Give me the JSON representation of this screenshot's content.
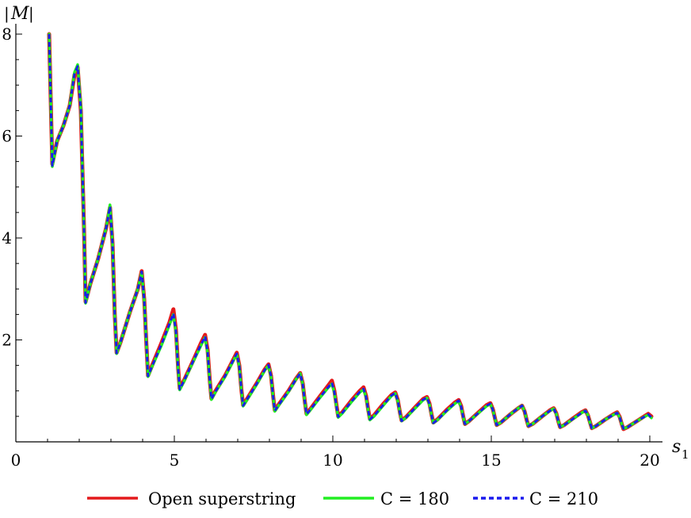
{
  "chart_data": {
    "type": "line",
    "title": "",
    "xlabel": "s1",
    "xlabel_main": "s",
    "xlabel_sub": "1",
    "ylabel": "|M|",
    "ylabel_left": "|",
    "ylabel_mid": "M",
    "ylabel_right": "|",
    "xlim": [
      0,
      20
    ],
    "ylim": [
      0,
      8
    ],
    "xticks": [
      0,
      5,
      10,
      15,
      20
    ],
    "yticks": [
      2,
      4,
      6,
      8
    ],
    "grid": false,
    "legend_placement": "bottom",
    "series": [
      {
        "name": "Open superstring",
        "color": "#e41a1c",
        "style": "solid",
        "x": [
          1.05,
          1.15,
          1.3,
          1.5,
          1.7,
          1.85,
          1.95,
          2.05,
          2.15,
          2.2,
          2.35,
          2.6,
          2.85,
          2.97,
          3.05,
          3.12,
          3.18,
          3.3,
          3.6,
          3.85,
          3.97,
          4.05,
          4.12,
          4.17,
          4.3,
          4.6,
          4.85,
          4.97,
          5.05,
          5.12,
          5.17,
          5.3,
          5.6,
          5.85,
          5.97,
          6.05,
          6.12,
          6.17,
          6.3,
          6.6,
          6.85,
          6.97,
          7.05,
          7.12,
          7.17,
          7.3,
          7.6,
          7.85,
          7.97,
          8.05,
          8.12,
          8.17,
          8.3,
          8.6,
          8.85,
          8.97,
          9.05,
          9.12,
          9.17,
          9.3,
          9.6,
          9.85,
          9.97,
          10.05,
          10.12,
          10.17,
          10.3,
          10.6,
          10.85,
          10.97,
          11.05,
          11.12,
          11.17,
          11.3,
          11.6,
          11.85,
          11.97,
          12.05,
          12.12,
          12.17,
          12.3,
          12.6,
          12.85,
          12.97,
          13.05,
          13.12,
          13.17,
          13.3,
          13.6,
          13.85,
          13.97,
          14.05,
          14.12,
          14.17,
          14.3,
          14.6,
          14.85,
          14.97,
          15.05,
          15.12,
          15.17,
          15.3,
          15.6,
          15.85,
          15.97,
          16.05,
          16.12,
          16.17,
          16.3,
          16.6,
          16.85,
          16.97,
          17.05,
          17.12,
          17.17,
          17.3,
          17.6,
          17.85,
          17.97,
          18.05,
          18.12,
          18.17,
          18.3,
          18.6,
          18.85,
          18.97,
          19.05,
          19.12,
          19.17,
          19.3,
          19.6,
          19.85,
          19.95,
          20.05
        ],
        "y": [
          8.0,
          5.45,
          5.9,
          6.2,
          6.6,
          7.2,
          7.35,
          6.5,
          4.2,
          2.75,
          3.1,
          3.6,
          4.2,
          4.6,
          3.9,
          2.5,
          1.75,
          1.95,
          2.55,
          3.0,
          3.35,
          2.8,
          1.9,
          1.3,
          1.5,
          1.95,
          2.35,
          2.6,
          2.2,
          1.45,
          1.05,
          1.2,
          1.6,
          1.95,
          2.1,
          1.8,
          1.2,
          0.85,
          1.0,
          1.3,
          1.6,
          1.75,
          1.5,
          1.0,
          0.72,
          0.85,
          1.15,
          1.42,
          1.52,
          1.3,
          0.88,
          0.62,
          0.74,
          1.0,
          1.25,
          1.35,
          1.15,
          0.78,
          0.55,
          0.65,
          0.9,
          1.1,
          1.2,
          1.0,
          0.7,
          0.5,
          0.58,
          0.82,
          1.0,
          1.07,
          0.9,
          0.62,
          0.45,
          0.52,
          0.75,
          0.92,
          0.97,
          0.82,
          0.57,
          0.42,
          0.48,
          0.68,
          0.84,
          0.88,
          0.75,
          0.52,
          0.38,
          0.44,
          0.63,
          0.77,
          0.82,
          0.7,
          0.48,
          0.35,
          0.41,
          0.58,
          0.72,
          0.76,
          0.64,
          0.45,
          0.33,
          0.38,
          0.54,
          0.66,
          0.71,
          0.6,
          0.42,
          0.31,
          0.35,
          0.5,
          0.62,
          0.66,
          0.56,
          0.39,
          0.29,
          0.33,
          0.47,
          0.58,
          0.62,
          0.52,
          0.37,
          0.27,
          0.31,
          0.44,
          0.54,
          0.58,
          0.49,
          0.34,
          0.25,
          0.29,
          0.41,
          0.51,
          0.55,
          0.5
        ]
      },
      {
        "name": "C = 180",
        "color": "#22ee22",
        "style": "solid",
        "x": [
          1.05,
          1.15,
          1.3,
          1.5,
          1.7,
          1.85,
          1.95,
          2.05,
          2.15,
          2.2,
          2.35,
          2.6,
          2.85,
          2.97,
          3.05,
          3.12,
          3.18,
          3.3,
          3.6,
          3.85,
          3.97,
          4.05,
          4.12,
          4.17,
          4.3,
          4.6,
          4.85,
          4.97,
          5.05,
          5.12,
          5.17,
          5.3,
          5.6,
          5.85,
          5.97,
          6.05,
          6.12,
          6.17,
          6.3,
          6.6,
          6.85,
          6.97,
          7.05,
          7.12,
          7.17,
          7.3,
          7.6,
          7.85,
          7.97,
          8.05,
          8.12,
          8.17,
          8.3,
          8.6,
          8.85,
          8.97,
          9.05,
          9.12,
          9.17,
          9.3,
          9.6,
          9.85,
          9.97,
          10.05,
          10.12,
          10.17,
          10.3,
          10.6,
          10.85,
          10.97,
          11.05,
          11.12,
          11.17,
          11.3,
          11.6,
          11.85,
          11.97,
          12.05,
          12.12,
          12.17,
          12.3,
          12.6,
          12.85,
          12.97,
          13.05,
          13.12,
          13.17,
          13.3,
          13.6,
          13.85,
          13.97,
          14.05,
          14.12,
          14.17,
          14.3,
          14.6,
          14.85,
          14.97,
          15.05,
          15.12,
          15.17,
          15.3,
          15.6,
          15.85,
          15.97,
          16.05,
          16.12,
          16.17,
          16.3,
          16.6,
          16.85,
          16.97,
          17.05,
          17.12,
          17.17,
          17.3,
          17.6,
          17.85,
          17.97,
          18.05,
          18.12,
          18.17,
          18.3,
          18.6,
          18.85,
          18.97,
          19.05,
          19.12,
          19.17,
          19.3,
          19.6,
          19.85,
          19.95,
          20.05
        ],
        "y": [
          8.0,
          5.4,
          5.9,
          6.2,
          6.6,
          7.25,
          7.4,
          6.55,
          4.2,
          2.72,
          3.1,
          3.6,
          4.2,
          4.65,
          3.9,
          2.5,
          1.73,
          1.95,
          2.55,
          3.0,
          3.33,
          2.78,
          1.9,
          1.28,
          1.48,
          1.9,
          2.3,
          2.5,
          2.15,
          1.42,
          1.02,
          1.18,
          1.58,
          1.9,
          2.05,
          1.75,
          1.18,
          0.83,
          0.98,
          1.28,
          1.58,
          1.72,
          1.48,
          0.98,
          0.7,
          0.83,
          1.13,
          1.4,
          1.5,
          1.28,
          0.86,
          0.6,
          0.72,
          0.98,
          1.24,
          1.34,
          1.14,
          0.77,
          0.53,
          0.63,
          0.87,
          1.06,
          1.14,
          0.96,
          0.67,
          0.48,
          0.56,
          0.79,
          0.97,
          1.03,
          0.87,
          0.6,
          0.43,
          0.5,
          0.72,
          0.9,
          0.95,
          0.8,
          0.56,
          0.41,
          0.47,
          0.66,
          0.82,
          0.86,
          0.73,
          0.51,
          0.37,
          0.43,
          0.61,
          0.75,
          0.8,
          0.68,
          0.47,
          0.35,
          0.41,
          0.57,
          0.7,
          0.74,
          0.63,
          0.44,
          0.33,
          0.38,
          0.54,
          0.66,
          0.71,
          0.6,
          0.42,
          0.31,
          0.35,
          0.5,
          0.61,
          0.65,
          0.55,
          0.39,
          0.29,
          0.33,
          0.46,
          0.57,
          0.61,
          0.52,
          0.36,
          0.27,
          0.31,
          0.44,
          0.53,
          0.57,
          0.48,
          0.34,
          0.26,
          0.29,
          0.41,
          0.5,
          0.53,
          0.47
        ]
      },
      {
        "name": "C = 210",
        "color": "#1a1aee",
        "style": "dashed",
        "x": [
          1.05,
          1.15,
          1.3,
          1.5,
          1.7,
          1.85,
          1.95,
          2.05,
          2.15,
          2.2,
          2.35,
          2.6,
          2.85,
          2.97,
          3.05,
          3.12,
          3.18,
          3.3,
          3.6,
          3.85,
          3.97,
          4.05,
          4.12,
          4.17,
          4.3,
          4.6,
          4.85,
          4.97,
          5.05,
          5.12,
          5.17,
          5.3,
          5.6,
          5.85,
          5.97,
          6.05,
          6.12,
          6.17,
          6.3,
          6.6,
          6.85,
          6.97,
          7.05,
          7.12,
          7.17,
          7.3,
          7.6,
          7.85,
          7.97,
          8.05,
          8.12,
          8.17,
          8.3,
          8.6,
          8.85,
          8.97,
          9.05,
          9.12,
          9.17,
          9.3,
          9.6,
          9.85,
          9.97,
          10.05,
          10.12,
          10.17,
          10.3,
          10.6,
          10.85,
          10.97,
          11.05,
          11.12,
          11.17,
          11.3,
          11.6,
          11.85,
          11.97,
          12.05,
          12.12,
          12.17,
          12.3,
          12.6,
          12.85,
          12.97,
          13.05,
          13.12,
          13.17,
          13.3,
          13.6,
          13.85,
          13.97,
          14.05,
          14.12,
          14.17,
          14.3,
          14.6,
          14.85,
          14.97,
          15.05,
          15.12,
          15.17,
          15.3,
          15.6,
          15.85,
          15.97,
          16.05,
          16.12,
          16.17,
          16.3,
          16.6,
          16.85,
          16.97,
          17.05,
          17.12,
          17.17,
          17.3,
          17.6,
          17.85,
          17.97,
          18.05,
          18.12,
          18.17,
          18.3,
          18.6,
          18.85,
          18.97,
          19.05,
          19.12,
          19.17,
          19.3,
          19.6,
          19.85,
          19.95,
          20.05
        ],
        "y": [
          8.0,
          5.42,
          5.9,
          6.2,
          6.6,
          7.22,
          7.37,
          6.52,
          4.2,
          2.73,
          3.1,
          3.6,
          4.2,
          4.62,
          3.9,
          2.5,
          1.74,
          1.95,
          2.55,
          3.0,
          3.34,
          2.79,
          1.9,
          1.29,
          1.49,
          1.92,
          2.32,
          2.52,
          2.17,
          1.43,
          1.03,
          1.19,
          1.59,
          1.92,
          2.07,
          1.77,
          1.19,
          0.84,
          0.99,
          1.29,
          1.59,
          1.73,
          1.49,
          0.99,
          0.71,
          0.84,
          1.14,
          1.41,
          1.51,
          1.29,
          0.87,
          0.61,
          0.73,
          0.99,
          1.24,
          1.34,
          1.14,
          0.77,
          0.54,
          0.64,
          0.88,
          1.07,
          1.16,
          0.97,
          0.68,
          0.49,
          0.57,
          0.8,
          0.98,
          1.04,
          0.88,
          0.61,
          0.44,
          0.51,
          0.73,
          0.91,
          0.96,
          0.81,
          0.56,
          0.41,
          0.47,
          0.67,
          0.83,
          0.87,
          0.74,
          0.51,
          0.37,
          0.43,
          0.62,
          0.76,
          0.81,
          0.69,
          0.47,
          0.35,
          0.41,
          0.57,
          0.71,
          0.75,
          0.63,
          0.44,
          0.33,
          0.38,
          0.54,
          0.66,
          0.71,
          0.6,
          0.42,
          0.31,
          0.35,
          0.5,
          0.61,
          0.65,
          0.55,
          0.39,
          0.29,
          0.33,
          0.46,
          0.57,
          0.61,
          0.52,
          0.36,
          0.27,
          0.31,
          0.44,
          0.53,
          0.57,
          0.48,
          0.34,
          0.26,
          0.29,
          0.41,
          0.5,
          0.54,
          0.48
        ]
      }
    ]
  }
}
